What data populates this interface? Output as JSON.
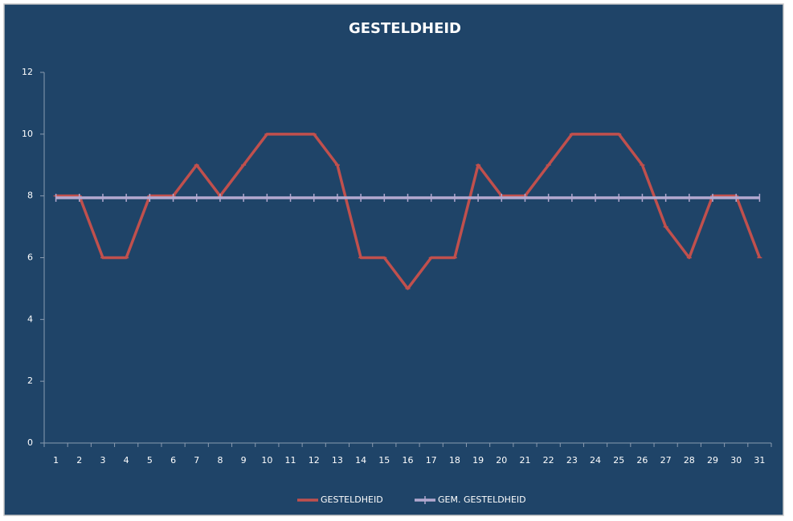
{
  "chart_data": {
    "type": "line",
    "title": "GESTELDHEID",
    "categories": [
      1,
      2,
      3,
      4,
      5,
      6,
      7,
      8,
      9,
      10,
      11,
      12,
      13,
      14,
      15,
      16,
      17,
      18,
      19,
      20,
      21,
      22,
      23,
      24,
      25,
      26,
      27,
      28,
      29,
      30,
      31
    ],
    "series": [
      {
        "name": "GESTELDHEID",
        "color": "#c0504d",
        "values": [
          8,
          8,
          6,
          6,
          8,
          8,
          9,
          8,
          9,
          10,
          10,
          10,
          9,
          6,
          6,
          5,
          6,
          6,
          9,
          8,
          8,
          9,
          10,
          10,
          10,
          9,
          7,
          6,
          8,
          8,
          6
        ]
      },
      {
        "name": "GEM. GESTELDHEID",
        "color": "#b3a9d0",
        "values": [
          7.94,
          7.94,
          7.94,
          7.94,
          7.94,
          7.94,
          7.94,
          7.94,
          7.94,
          7.94,
          7.94,
          7.94,
          7.94,
          7.94,
          7.94,
          7.94,
          7.94,
          7.94,
          7.94,
          7.94,
          7.94,
          7.94,
          7.94,
          7.94,
          7.94,
          7.94,
          7.94,
          7.94,
          7.94,
          7.94,
          7.94
        ]
      }
    ],
    "ylim": [
      0,
      12
    ],
    "yticks": [
      0,
      2,
      4,
      6,
      8,
      10,
      12
    ],
    "grid": false,
    "legend": "bottom"
  }
}
